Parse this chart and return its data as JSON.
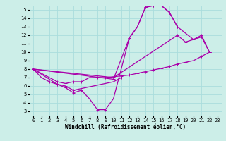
{
  "bg_color": "#cceee8",
  "grid_color": "#aadddd",
  "line_color": "#aa00aa",
  "marker": "+",
  "markersize": 3,
  "linewidth": 0.9,
  "xlabel": "Windchill (Refroidissement éolien,°C)",
  "xlabel_fontsize": 5.5,
  "tick_fontsize": 5.0,
  "xlim": [
    -0.5,
    23.5
  ],
  "ylim": [
    2.5,
    15.5
  ],
  "xticks": [
    0,
    1,
    2,
    3,
    4,
    5,
    6,
    7,
    8,
    9,
    10,
    11,
    12,
    13,
    14,
    15,
    16,
    17,
    18,
    19,
    20,
    21,
    22,
    23
  ],
  "yticks": [
    3,
    4,
    5,
    6,
    7,
    8,
    9,
    10,
    11,
    12,
    13,
    14,
    15
  ],
  "lines": [
    {
      "x": [
        0,
        1,
        2,
        3,
        4,
        5,
        6,
        7,
        8,
        9,
        10,
        12,
        13,
        14,
        15,
        16,
        17,
        18,
        20,
        21,
        22
      ],
      "y": [
        8.0,
        7.0,
        6.5,
        6.2,
        5.8,
        5.2,
        5.5,
        4.5,
        3.2,
        3.2,
        4.5,
        11.7,
        13.0,
        15.3,
        15.5,
        15.5,
        14.7,
        13.0,
        11.5,
        12.0,
        10.0
      ]
    },
    {
      "x": [
        0,
        3,
        4,
        5,
        10,
        11
      ],
      "y": [
        8.0,
        6.2,
        6.0,
        5.5,
        6.5,
        7.0
      ]
    },
    {
      "x": [
        0,
        10,
        12,
        13,
        14,
        15,
        16,
        17,
        18
      ],
      "y": [
        8.0,
        6.8,
        11.7,
        13.0,
        15.3,
        15.5,
        15.5,
        14.7,
        13.0
      ]
    },
    {
      "x": [
        0,
        10,
        18,
        19,
        20,
        21,
        22
      ],
      "y": [
        8.0,
        7.0,
        12.0,
        11.2,
        11.5,
        11.8,
        10.0
      ]
    },
    {
      "x": [
        0,
        3,
        4,
        5,
        6,
        7,
        8,
        9,
        10,
        11,
        12,
        13,
        14,
        15,
        16,
        17,
        18,
        19,
        20,
        21,
        22
      ],
      "y": [
        8.0,
        6.5,
        6.3,
        6.5,
        6.5,
        7.0,
        7.0,
        7.0,
        7.1,
        7.2,
        7.3,
        7.5,
        7.7,
        7.9,
        8.1,
        8.3,
        8.6,
        8.8,
        9.0,
        9.5,
        10.0
      ]
    }
  ]
}
